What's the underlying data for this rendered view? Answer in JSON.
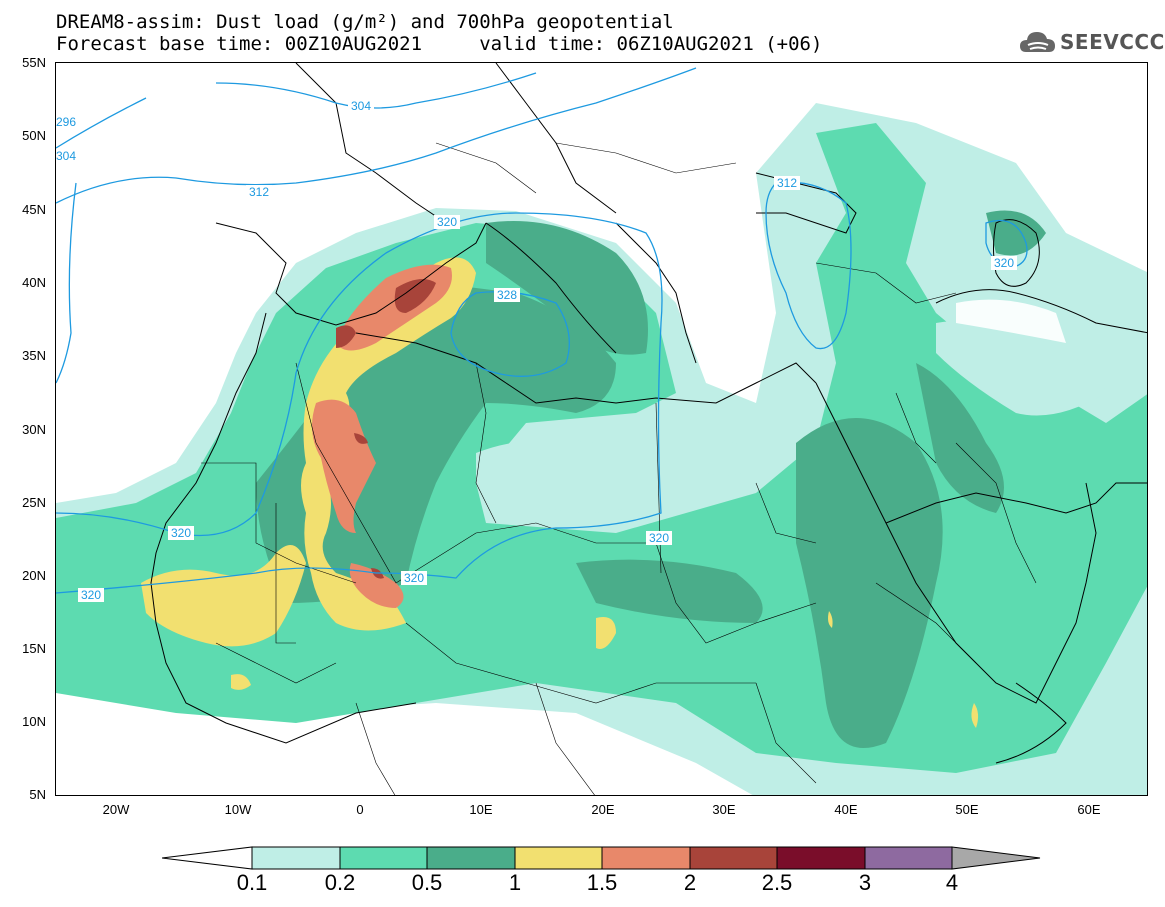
{
  "title_line1": "DREAM8-assim: Dust load (g/m²) and 700hPa geopotential",
  "title_line2": "Forecast base time: 00Z10AUG2021     valid time: 06Z10AUG2021 (+06)",
  "logo": {
    "name": "cloud-logo-icon",
    "text": "SEEVCCC"
  },
  "lat_labels": [
    "55N",
    "50N",
    "45N",
    "40N",
    "35N",
    "30N",
    "25N",
    "20N",
    "15N",
    "10N",
    "5N"
  ],
  "lon_labels": [
    "20W",
    "10W",
    "0",
    "10E",
    "20E",
    "30E",
    "40E",
    "50E",
    "60E"
  ],
  "contour_labels": [
    "304",
    "312",
    "320",
    "328",
    "312",
    "320",
    "320",
    "320",
    "320",
    "296",
    "304",
    "320"
  ],
  "colorbar": {
    "labels": [
      "0.1",
      "0.2",
      "0.5",
      "1",
      "1.5",
      "2",
      "2.5",
      "3",
      "4"
    ],
    "colors": [
      "#bfeee6",
      "#5ddbb0",
      "#4aad8a",
      "#f2e070",
      "#e8886a",
      "#a8443a",
      "#7a0d2a",
      "#8e6aa0",
      "#a8a8a8"
    ]
  },
  "contour_color": "#1e9ae0"
}
